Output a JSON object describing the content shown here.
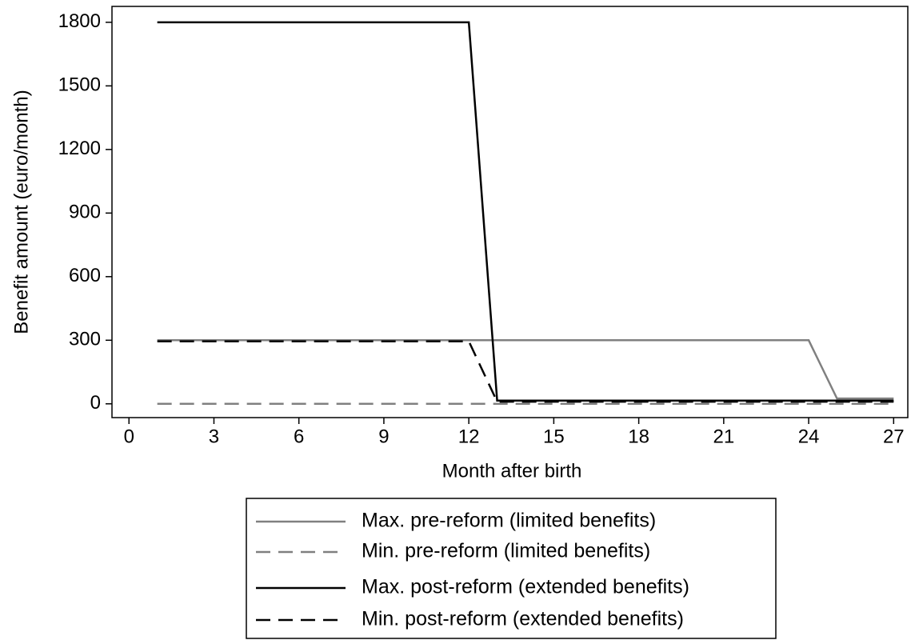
{
  "chart_data": {
    "type": "line",
    "x_label": "Month after birth",
    "y_label": "Benefit amount (euro/month)",
    "x": [
      1,
      2,
      3,
      4,
      5,
      6,
      7,
      8,
      9,
      10,
      11,
      12,
      13,
      14,
      15,
      16,
      17,
      18,
      19,
      20,
      21,
      22,
      23,
      24,
      25,
      26,
      27
    ],
    "series": [
      {
        "name": "Max. pre-reform (limited benefits)",
        "color": "#808080",
        "linestyle": "solid",
        "values": [
          300,
          300,
          300,
          300,
          300,
          300,
          300,
          300,
          300,
          300,
          300,
          300,
          300,
          300,
          300,
          300,
          300,
          300,
          300,
          300,
          300,
          300,
          300,
          300,
          25,
          25,
          25
        ]
      },
      {
        "name": "Min. pre-reform (limited benefits)",
        "color": "#808080",
        "linestyle": "dashed",
        "values": [
          0,
          0,
          0,
          0,
          0,
          0,
          0,
          0,
          0,
          0,
          0,
          0,
          0,
          0,
          0,
          0,
          0,
          0,
          0,
          0,
          0,
          0,
          0,
          0,
          0,
          0,
          0
        ]
      },
      {
        "name": "Max. post-reform (extended benefits)",
        "color": "#000000",
        "linestyle": "solid",
        "values": [
          1800,
          1800,
          1800,
          1800,
          1800,
          1800,
          1800,
          1800,
          1800,
          1800,
          1800,
          1800,
          15,
          15,
          15,
          15,
          15,
          15,
          15,
          15,
          15,
          15,
          15,
          15,
          15,
          15,
          15
        ]
      },
      {
        "name": "Min. post-reform (extended benefits)",
        "color": "#000000",
        "linestyle": "dashed",
        "values": [
          295,
          295,
          295,
          295,
          295,
          295,
          295,
          295,
          295,
          295,
          295,
          295,
          10,
          10,
          10,
          10,
          10,
          10,
          10,
          10,
          10,
          10,
          10,
          10,
          10,
          10,
          10
        ]
      }
    ],
    "xlim": [
      -0.6,
      27.5
    ],
    "xticks": [
      0,
      3,
      6,
      9,
      12,
      15,
      18,
      21,
      24,
      27
    ],
    "ylim": [
      -65,
      1875
    ],
    "yticks": [
      0,
      300,
      600,
      900,
      1200,
      1500,
      1800
    ],
    "grid": false,
    "legend": "bottom"
  }
}
